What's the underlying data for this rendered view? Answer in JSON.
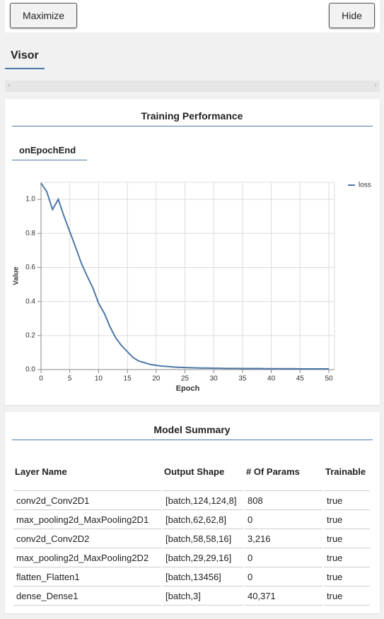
{
  "buttons": {
    "maximize": "Maximize",
    "hide": "Hide"
  },
  "tab": "Visor",
  "chart_section": {
    "title": "Training Performance",
    "tab": "onEpochEnd"
  },
  "chart_data": {
    "type": "line",
    "x": [
      0,
      1,
      2,
      3,
      4,
      5,
      6,
      7,
      8,
      9,
      10,
      11,
      12,
      13,
      14,
      15,
      16,
      17,
      18,
      19,
      20,
      21,
      22,
      23,
      24,
      25,
      26,
      27,
      28,
      29,
      30,
      31,
      32,
      33,
      34,
      35,
      36,
      37,
      38,
      39,
      40,
      41,
      42,
      43,
      44,
      45,
      46,
      47,
      48,
      49,
      50
    ],
    "series": [
      {
        "name": "loss",
        "color": "#4c78a8",
        "values": [
          1.095,
          1.045,
          0.94,
          1.0,
          0.9,
          0.81,
          0.72,
          0.625,
          0.55,
          0.48,
          0.39,
          0.33,
          0.25,
          0.185,
          0.14,
          0.105,
          0.07,
          0.05,
          0.04,
          0.03,
          0.025,
          0.02,
          0.018,
          0.015,
          0.013,
          0.012,
          0.011,
          0.01,
          0.009,
          0.009,
          0.008,
          0.008,
          0.007,
          0.007,
          0.007,
          0.006,
          0.006,
          0.006,
          0.006,
          0.005,
          0.005,
          0.005,
          0.005,
          0.005,
          0.005,
          0.004,
          0.004,
          0.004,
          0.004,
          0.004,
          0.004
        ]
      }
    ],
    "xlabel": "Epoch",
    "ylabel": "Value",
    "xlim": [
      0,
      50
    ],
    "xticks": [
      0,
      5,
      10,
      15,
      20,
      25,
      30,
      35,
      40,
      45,
      50
    ],
    "ylim": [
      0,
      1.1
    ],
    "yticks": [
      {
        "value": 0,
        "label": "0.0"
      },
      0.2,
      0.4,
      0.6,
      0.8,
      {
        "value": 1,
        "label": "1.0"
      }
    ],
    "grid": true,
    "legend": "top-right"
  },
  "table": {
    "title": "Model Summary",
    "header": [
      "Layer Name",
      "Output Shape",
      "# Of Params",
      "Trainable"
    ],
    "rows": [
      [
        "conv2d_Conv2D1",
        "[batch,124,124,8]",
        "808",
        "true"
      ],
      [
        "max_pooling2d_MaxPooling2D1",
        "[batch,62,62,8]",
        "0",
        "true"
      ],
      [
        "conv2d_Conv2D2",
        "[batch,58,58,16]",
        "3,216",
        "true"
      ],
      [
        "max_pooling2d_MaxPooling2D2",
        "[batch,29,29,16]",
        "0",
        "true"
      ],
      [
        "flatten_Flatten1",
        "[batch,13456]",
        "0",
        "true"
      ],
      [
        "dense_Dense1",
        "[batch,3]",
        "40,371",
        "true"
      ]
    ]
  }
}
